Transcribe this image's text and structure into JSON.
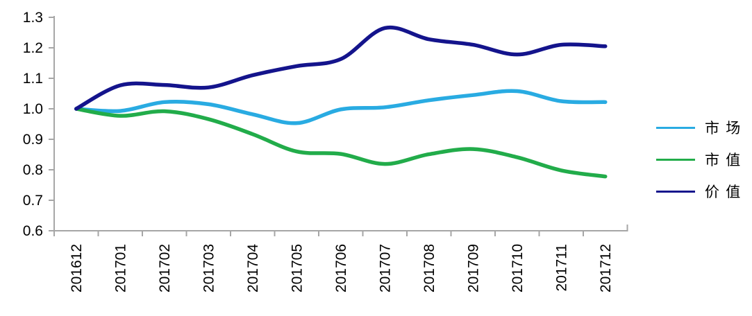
{
  "chart_data": {
    "type": "line",
    "title": "",
    "xlabel": "",
    "ylabel": "",
    "x_labels": [
      "201612",
      "201701",
      "201702",
      "201703",
      "201704",
      "201705",
      "201706",
      "201707",
      "201708",
      "201709",
      "201710",
      "201711",
      "201712"
    ],
    "series": [
      {
        "name": "市场",
        "color": "#29ABE2",
        "values": [
          1.0,
          0.993,
          1.022,
          1.015,
          0.982,
          0.953,
          0.998,
          1.005,
          1.028,
          1.045,
          1.058,
          1.025,
          1.022
        ]
      },
      {
        "name": "市值",
        "color": "#22AC4A",
        "values": [
          1.0,
          0.977,
          0.992,
          0.966,
          0.917,
          0.86,
          0.852,
          0.819,
          0.851,
          0.868,
          0.841,
          0.798,
          0.778
        ]
      },
      {
        "name": "价值",
        "color": "#14148C",
        "values": [
          1.0,
          1.077,
          1.078,
          1.07,
          1.11,
          1.14,
          1.163,
          1.265,
          1.228,
          1.21,
          1.178,
          1.21,
          1.205
        ]
      }
    ],
    "ylim": [
      0.6,
      1.3
    ],
    "yticks": [
      "0.6",
      "0.7",
      "0.8",
      "0.9",
      "1.0",
      "1.1",
      "1.2",
      "1.3"
    ],
    "grid": false,
    "legend_position": "right",
    "axis_color": "#A6A6A6",
    "text_color": "#000000",
    "smooth_lines": true
  },
  "legend": {
    "items": [
      {
        "label": "市 场"
      },
      {
        "label": "市 值"
      },
      {
        "label": "价 值"
      }
    ]
  }
}
